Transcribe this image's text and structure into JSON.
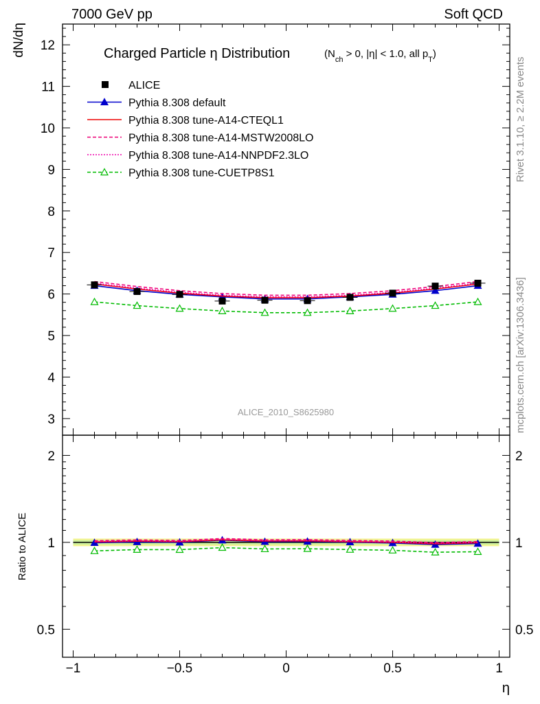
{
  "header": {
    "left": "7000 GeV pp",
    "right": "Soft QCD"
  },
  "side": {
    "rivet": "Rivet 3.1.10, ≥ 2.2M events",
    "mcplots": "mcplots.cern.ch [arXiv:1306.3436]"
  },
  "chart_data": {
    "type": "line",
    "title": "Charged Particle η Distribution",
    "subtitle_parts": {
      "open": "(N",
      "sub": "ch",
      "mid": " > 0, |η| < 1.0, all p",
      "sub2": "T",
      "close": ")"
    },
    "analysis_label": "ALICE_2010_S8625980",
    "xlabel": "η",
    "ylabel": "dN/dη",
    "ratio_ylabel": "Ratio to ALICE",
    "xlim": [
      -1.05,
      1.05
    ],
    "ylim": [
      2.6,
      12.5
    ],
    "ratio_ylim": [
      0.4,
      2.35
    ],
    "ratio_scale": "log",
    "x_ticks": [
      -1,
      -0.5,
      0,
      0.5,
      1
    ],
    "x_tick_labels": [
      "−1",
      "−0.5",
      "0",
      "0.5",
      "1"
    ],
    "y_ticks": [
      3,
      4,
      5,
      6,
      7,
      8,
      9,
      10,
      11,
      12
    ],
    "y_tick_labels": [
      "3",
      "4",
      "5",
      "6",
      "7",
      "8",
      "9",
      "10",
      "11",
      "12"
    ],
    "ratio_ticks": [
      0.5,
      1,
      2
    ],
    "ratio_tick_labels": [
      "0.5",
      "1",
      "2"
    ],
    "ratio_band": [
      0.97,
      1.03
    ],
    "legend_position": "top-left",
    "x": [
      -0.9,
      -0.7,
      -0.5,
      -0.3,
      -0.1,
      0.1,
      0.3,
      0.5,
      0.7,
      0.9
    ],
    "series": [
      {
        "name": "ALICE",
        "color": "#000000",
        "style": "data",
        "values": [
          6.22,
          6.06,
          5.99,
          5.83,
          5.85,
          5.84,
          5.92,
          6.02,
          6.19,
          6.26
        ]
      },
      {
        "name": "Pythia 8.308 default",
        "color": "#0000cc",
        "style": "solid-triangle",
        "values": [
          6.2,
          6.08,
          5.99,
          5.93,
          5.88,
          5.88,
          5.93,
          5.99,
          6.08,
          6.2
        ]
      },
      {
        "name": "Pythia 8.308 tune-A14-CTEQL1",
        "color": "#ee0000",
        "style": "solid",
        "values": [
          6.24,
          6.12,
          6.02,
          5.95,
          5.91,
          5.91,
          5.95,
          6.02,
          6.12,
          6.24
        ]
      },
      {
        "name": "Pythia 8.308 tune-A14-MSTW2008LO",
        "color": "#ee0077",
        "style": "dashed",
        "values": [
          6.3,
          6.18,
          6.08,
          6.01,
          5.97,
          5.97,
          6.01,
          6.08,
          6.18,
          6.3
        ]
      },
      {
        "name": "Pythia 8.308 tune-A14-NNPDF2.3LO",
        "color": "#ee00aa",
        "style": "dotted",
        "values": [
          6.26,
          6.14,
          6.04,
          5.97,
          5.93,
          5.93,
          5.97,
          6.04,
          6.14,
          6.26
        ]
      },
      {
        "name": "Pythia 8.308 tune-CUETP8S1",
        "color": "#00bb00",
        "style": "dashed-open-triangle",
        "values": [
          5.81,
          5.72,
          5.65,
          5.59,
          5.55,
          5.55,
          5.59,
          5.65,
          5.72,
          5.81
        ]
      }
    ]
  }
}
